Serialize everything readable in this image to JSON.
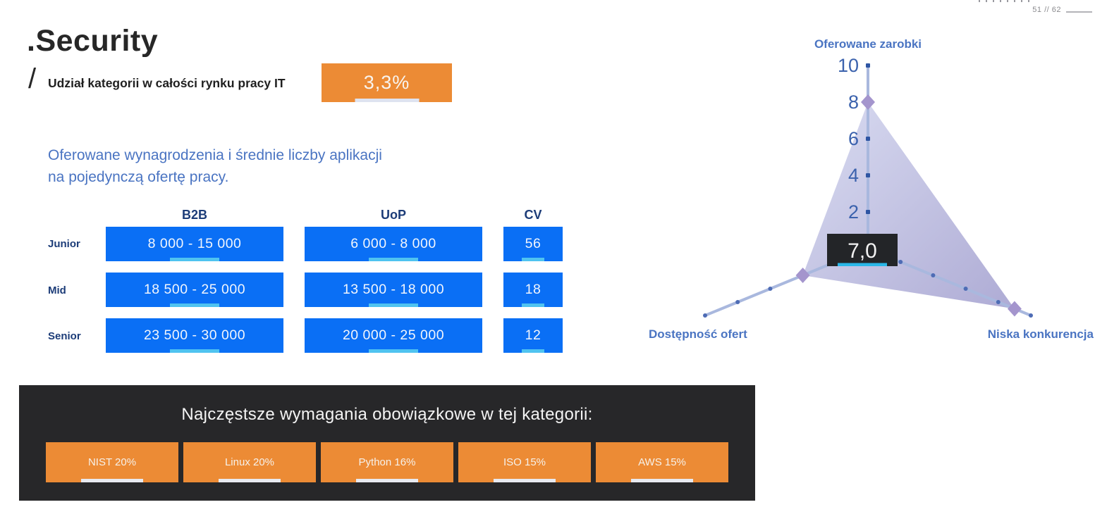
{
  "page": {
    "indicator": "51 // 62"
  },
  "header": {
    "title": ".Security",
    "slash": "/",
    "subtitle": "Udział kategorii w całości rynku pracy IT",
    "share_badge": "3,3%"
  },
  "salary_section": {
    "intro_line1": "Oferowane wynagrodzenia i średnie liczby aplikacji",
    "intro_line2": "na pojedynczą ofertę pracy.",
    "columns": [
      "B2B",
      "UoP",
      "CV"
    ],
    "rows": [
      {
        "label": "Junior",
        "b2b": "8 000 - 15 000",
        "uop": "6 000 - 8 000",
        "cv": "56"
      },
      {
        "label": "Mid",
        "b2b": "18 500 - 25 000",
        "uop": "13 500 - 18 000",
        "cv": "18"
      },
      {
        "label": "Senior",
        "b2b": "23 500 - 30 000",
        "uop": "20 000 - 25 000",
        "cv": "12"
      }
    ]
  },
  "radar": {
    "axis_top_label": "Oferowane zarobki",
    "axis_left_label": "Dostępność ofert",
    "axis_right_label": "Niska konkurencja",
    "average_label": "7,0"
  },
  "chart_data": {
    "type": "radar",
    "axes": [
      "Oferowane zarobki",
      "Dostępność ofert",
      "Niska konkurencja"
    ],
    "values": [
      8,
      4,
      9
    ],
    "scale": {
      "min": 0,
      "max": 10,
      "tick_step": 2,
      "tick_labels": [
        "10",
        "8",
        "6",
        "4",
        "2"
      ]
    },
    "average_label": "7,0",
    "legend": "none",
    "grid": "axes-only"
  },
  "requirements": {
    "heading": "Najczęstsze wymagania obowiązkowe w tej kategorii:",
    "badges": [
      "NIST 20%",
      "Linux 20%",
      "Python 16%",
      "ISO 15%",
      "AWS 15%"
    ]
  },
  "colors": {
    "orange": "#EC8B35",
    "blue_cell": "#0A6FF5",
    "cell_underline": "#4FC3F0",
    "avg_underline": "#2AB7E8",
    "navy_text": "#1C3C78",
    "blue_text": "#4A74C2",
    "dark_panel": "#272729",
    "diamond": "#A495CD",
    "axis_line": "#A9B8DE"
  }
}
